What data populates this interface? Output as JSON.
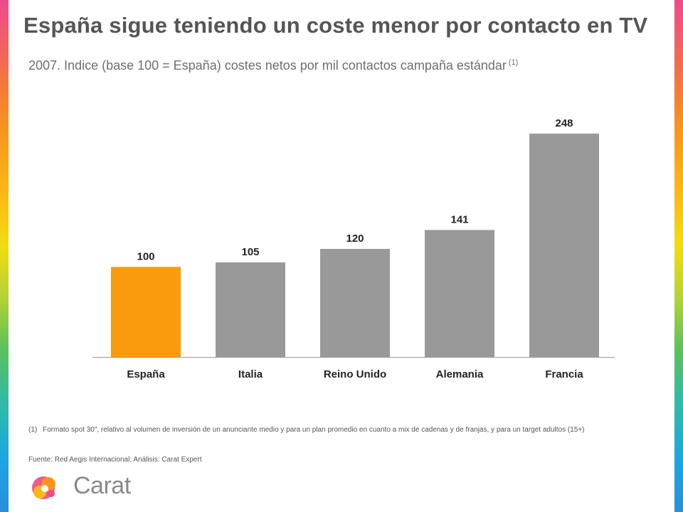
{
  "title": "España sigue teniendo un coste menor por contacto en TV",
  "subtitle": "2007. Indice (base 100 = España) costes netos por mil contactos campaña estándar",
  "subtitle_note": "(1)",
  "footnote": {
    "marker": "(1)",
    "text": "Formato spot 30\", relativo al volumen de inversión de un anunciante medio y para un plan promedio en cuanto a mix de cadenas y de franjas, y para un target adultos (15+)"
  },
  "source": "Fuente: Red Aegis Internacional; Análisis: Carat Expert",
  "logo": {
    "text": "Carat",
    "icon": "carat-logo-icon"
  },
  "colors": {
    "highlight": "#f99b0c",
    "bar": "#999999",
    "axis": "#999999",
    "text": "#555555"
  },
  "chart_data": {
    "type": "bar",
    "title": "",
    "xlabel": "",
    "ylabel": "",
    "categories": [
      "España",
      "Italia",
      "Reino Unido",
      "Alemania",
      "Francia"
    ],
    "values": [
      100,
      105,
      120,
      141,
      248
    ],
    "highlight_index": 0,
    "ylim": [
      0,
      270
    ],
    "grid": false,
    "legend": "none"
  }
}
